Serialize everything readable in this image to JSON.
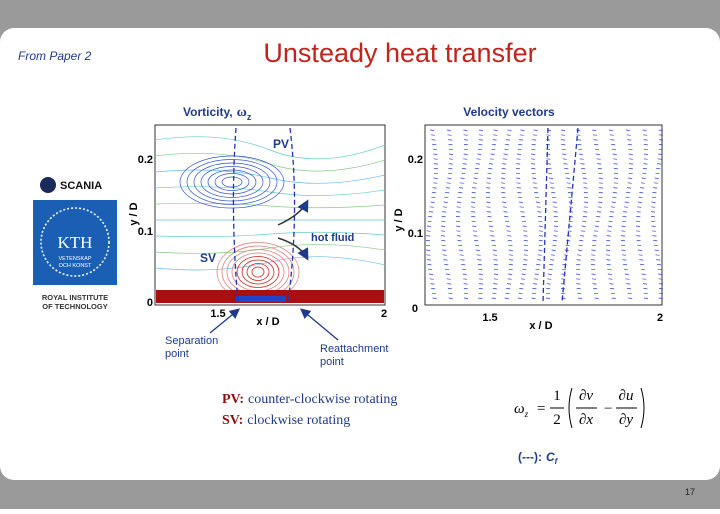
{
  "header": {
    "source": "From Paper 2",
    "title": "Unsteady heat transfer"
  },
  "logos": {
    "scania": "SCANIA",
    "kth": "KTH",
    "kth_motto_1": "VETENSKAP",
    "kth_motto_2": "OCH KONST",
    "institute_1": "ROYAL INSTITUTE",
    "institute_2": "OF TECHNOLOGY"
  },
  "vorticity_plot": {
    "title_text": "Vorticity,",
    "title_symbol": "ω",
    "title_sub": "z",
    "y_label": "y / D",
    "x_label": "x / D",
    "y_ticks": [
      "0.2",
      "0.1",
      "0"
    ],
    "x_ticks": [
      "1.5",
      "2"
    ],
    "pv": "PV",
    "sv": "SV",
    "hot_fluid": "hot fluid"
  },
  "velocity_plot": {
    "title": "Velocity vectors",
    "y_label": "y / D",
    "x_label": "x / D",
    "y_ticks": [
      "0.2",
      "0.1",
      "0"
    ],
    "x_ticks": [
      "1.5",
      "2"
    ]
  },
  "annotations": {
    "separation_1": "Separation",
    "separation_2": "point",
    "reattachment_1": "Reattachment",
    "reattachment_2": "point"
  },
  "notes": {
    "pv_key": "PV:",
    "pv_text": "counter-clockwise rotating",
    "sv_key": "SV:",
    "sv_text": "clockwise rotating"
  },
  "equation": {
    "lhs": "ω",
    "lhs_sub": "z",
    "equals": "=",
    "numerator": "1",
    "denominator": "2",
    "term1_num": "∂v",
    "term1_den": "∂x",
    "minus": "−",
    "term2_num": "∂u",
    "term2_den": "∂y"
  },
  "cf_legend": {
    "text": "(---):",
    "symbol": "C",
    "sub": "f"
  },
  "footer": {
    "page": "17"
  }
}
